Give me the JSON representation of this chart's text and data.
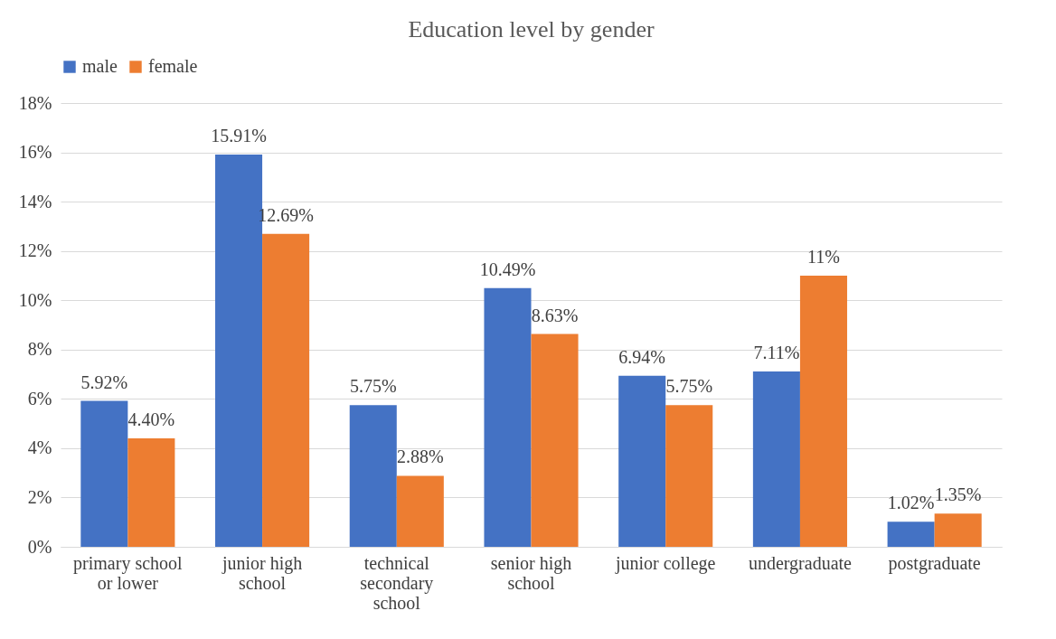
{
  "chart_data": {
    "type": "bar",
    "title": "Education level by gender",
    "categories": [
      "primary school or lower",
      "junior high school",
      "technical secondary school",
      "senior high school",
      "junior college",
      "undergraduate",
      "postgraduate"
    ],
    "series": [
      {
        "name": "male",
        "color": "#4472c4",
        "values": [
          5.92,
          15.91,
          5.75,
          10.49,
          6.94,
          7.11,
          1.02
        ],
        "value_labels": [
          "5.92%",
          "15.91%",
          "5.75%",
          "10.49%",
          "6.94%",
          "7.11%",
          "1.02%"
        ]
      },
      {
        "name": "female",
        "color": "#ed7d31",
        "values": [
          4.4,
          12.69,
          2.88,
          8.63,
          5.75,
          11,
          1.35
        ],
        "value_labels": [
          "4.40%",
          "12.69%",
          "2.88%",
          "8.63%",
          "5.75%",
          "11%",
          "1.35%"
        ]
      }
    ],
    "ylim": [
      0,
      18
    ],
    "yticks": [
      {
        "value": 0,
        "label": "0%"
      },
      {
        "value": 2,
        "label": "2%"
      },
      {
        "value": 4,
        "label": "4%"
      },
      {
        "value": 6,
        "label": "6%"
      },
      {
        "value": 8,
        "label": "8%"
      },
      {
        "value": 10,
        "label": "10%"
      },
      {
        "value": 12,
        "label": "12%"
      },
      {
        "value": 14,
        "label": "14%"
      },
      {
        "value": 16,
        "label": "16%"
      },
      {
        "value": 18,
        "label": "18%"
      }
    ],
    "grid": "y",
    "legend": "top"
  }
}
